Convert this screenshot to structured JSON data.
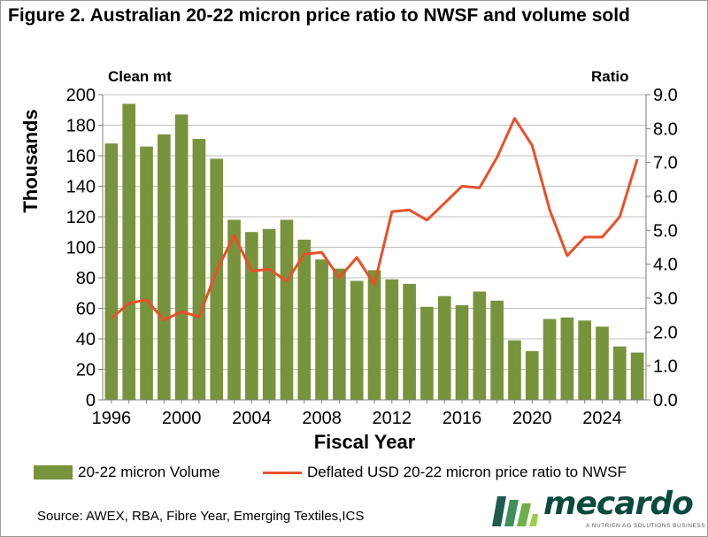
{
  "title": "Figure 2. Australian 20-22 micron price ratio to NWSF and volume sold",
  "axis_top_left": "Clean mt",
  "axis_top_right": "Ratio",
  "source": "Source: AWEX, RBA, Fibre Year,  Emerging Textiles,ICS",
  "logo": {
    "name": "mecardo",
    "tagline": "A NUTRIEN AG SOLUTIONS BUSINESS"
  },
  "colors": {
    "bar": "#77933c",
    "line": "#e8502a",
    "grid": "#bfbfbf",
    "logo": "#0a4a3f"
  },
  "chart_data": {
    "type": "bar",
    "xlabel": "Fiscal Year",
    "ylabel": "Thousands",
    "ylabel_right": "Ratio",
    "x": [
      1996,
      1997,
      1998,
      1999,
      2000,
      2001,
      2002,
      2003,
      2004,
      2005,
      2006,
      2007,
      2008,
      2009,
      2010,
      2011,
      2012,
      2013,
      2014,
      2015,
      2016,
      2017,
      2018,
      2019,
      2020,
      2021,
      2022,
      2023,
      2024,
      2025,
      2026
    ],
    "x_tick_labels": [
      "1996",
      "2000",
      "2004",
      "2008",
      "2012",
      "2016",
      "2020",
      "2024"
    ],
    "ylim": [
      0,
      200
    ],
    "y_ticks": [
      "0",
      "20",
      "40",
      "60",
      "80",
      "100",
      "120",
      "140",
      "160",
      "180",
      "200"
    ],
    "y2lim": [
      0,
      9
    ],
    "y2_ticks": [
      "0.0",
      "1.0",
      "2.0",
      "3.0",
      "4.0",
      "5.0",
      "6.0",
      "7.0",
      "8.0",
      "9.0"
    ],
    "grid": "horizontal",
    "legend_position": "bottom",
    "series": [
      {
        "name": "20-22 micron Volume",
        "type": "bar",
        "axis": "left",
        "values": [
          168,
          194,
          166,
          174,
          187,
          171,
          158,
          118,
          110,
          112,
          118,
          105,
          92,
          86,
          78,
          85,
          79,
          76,
          61,
          68,
          62,
          71,
          65,
          39,
          32,
          53,
          54,
          52,
          48,
          35,
          31
        ]
      },
      {
        "name": "Deflated USD 20-22 micron price ratio to NWSF",
        "type": "line",
        "axis": "right",
        "values": [
          2.4,
          2.85,
          2.95,
          2.35,
          2.6,
          2.45,
          3.8,
          4.85,
          3.8,
          3.85,
          3.5,
          4.3,
          4.35,
          3.6,
          4.2,
          3.4,
          5.55,
          5.6,
          5.3,
          5.8,
          6.3,
          6.25,
          7.15,
          8.3,
          7.5,
          5.6,
          4.25,
          4.8,
          4.8,
          5.4,
          7.1
        ]
      }
    ]
  }
}
